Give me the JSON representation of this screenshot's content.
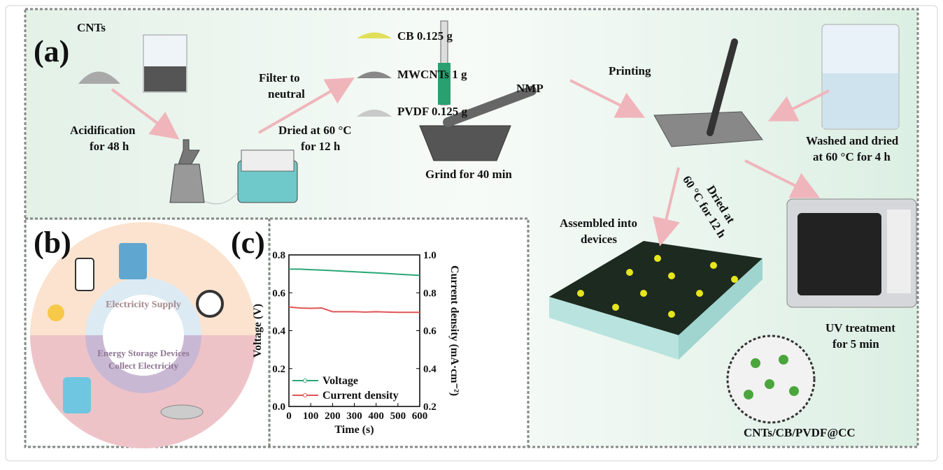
{
  "panel_a": {
    "tag": "(a)",
    "cnts": "CNTs",
    "acidification": [
      "Acidification",
      "for 48 h"
    ],
    "filter": [
      "Filter to",
      "neutral"
    ],
    "dried1": [
      "Dried at 60 °C",
      "for 12 h"
    ],
    "materials": [
      "CB  0.125 g",
      "MWCNTs  1 g",
      "PVDF  0.125 g"
    ],
    "nmp": "NMP",
    "grind": "Grind for 40 min",
    "printing": "Printing",
    "washed": [
      "Washed and dried",
      "at 60 °C for 4 h"
    ],
    "dried2": [
      "Dried at",
      "60 °C  for 12 h"
    ],
    "assembled": [
      "Assembled into",
      "devices"
    ],
    "uv": [
      "UV treatment",
      "for  5 min"
    ],
    "product": "CNTs/CB/PVDF@CC"
  },
  "panel_b": {
    "tag": "(b)",
    "supply": "Electricity Supply",
    "storage": [
      "Energy Storage Devices",
      "Collect Electricity"
    ]
  },
  "panel_c": {
    "tag": "(c)"
  },
  "chart_data": {
    "type": "line",
    "x_label": "Time (s)",
    "y_label": "Voltage (V)",
    "y2_label": "Current density (mA·cm⁻²)",
    "x": [
      0,
      50,
      100,
      150,
      200,
      250,
      300,
      350,
      400,
      450,
      500,
      550,
      600
    ],
    "xlim": [
      0,
      600
    ],
    "xticks": [
      0,
      100,
      200,
      300,
      400,
      500,
      600
    ],
    "ylim": [
      0,
      0.8
    ],
    "yticks": [
      {
        "value": 0,
        "label": "0.0"
      },
      0.2,
      0.4,
      0.6,
      0.8
    ],
    "y2lim": [
      0.2,
      1.0
    ],
    "y2ticks": [
      0.2,
      0.4,
      0.6,
      0.8,
      {
        "value": 1.0,
        "label": "1.0"
      }
    ],
    "legend": "lower left",
    "series": [
      {
        "name": "Voltage",
        "color": "#2aa876",
        "values": [
          0.725,
          0.725,
          0.722,
          0.72,
          0.717,
          0.714,
          0.711,
          0.708,
          0.705,
          0.702,
          0.698,
          0.695,
          0.692
        ]
      },
      {
        "name": "Current density",
        "color": "#e05555",
        "axis": "y2",
        "values": [
          0.725,
          0.72,
          0.718,
          0.72,
          0.7,
          0.7,
          0.7,
          0.698,
          0.7,
          0.698,
          0.697,
          0.697,
          0.697
        ]
      }
    ]
  }
}
